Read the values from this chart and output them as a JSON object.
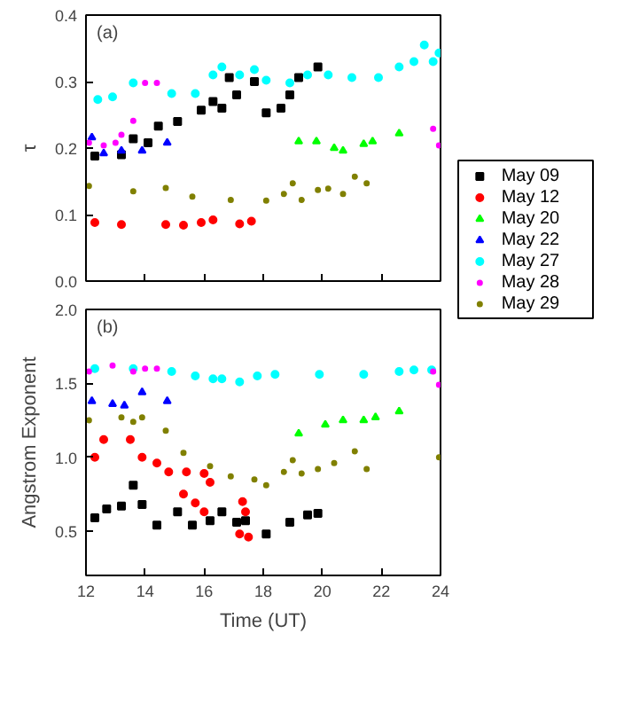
{
  "chart_data": [
    {
      "type": "scatter",
      "ylabel": "τ",
      "annotations": [
        "(a)"
      ],
      "xlim": [
        12,
        24
      ],
      "xticks": [
        12,
        14,
        16,
        18,
        20,
        22,
        24
      ],
      "ylim": [
        0,
        0.4
      ],
      "yticks": [
        {
          "value": 0,
          "label": "0.0"
        },
        0.1,
        0.2,
        0.3,
        0.4
      ],
      "tick_labels": "y",
      "legend": "right",
      "grid": false,
      "series": [
        {
          "name": "May 09",
          "color": "#000000",
          "marker": "square",
          "x": [
            12.3,
            13.2,
            13.6,
            14.1,
            14.45,
            15.1,
            15.9,
            16.3,
            16.6,
            16.85,
            17.1,
            17.7,
            18.1,
            18.6,
            18.9,
            19.2,
            19.85
          ],
          "values": [
            0.188,
            0.19,
            0.214,
            0.208,
            0.233,
            0.24,
            0.257,
            0.27,
            0.26,
            0.306,
            0.28,
            0.3,
            0.253,
            0.26,
            0.28,
            0.306,
            0.322
          ]
        },
        {
          "name": "May 12",
          "color": "#ff0000",
          "marker": "circle",
          "x": [
            12.3,
            13.2,
            14.7,
            15.3,
            15.9,
            16.3,
            17.2,
            17.6
          ],
          "values": [
            0.088,
            0.085,
            0.085,
            0.084,
            0.088,
            0.092,
            0.086,
            0.09
          ]
        },
        {
          "name": "May 20",
          "color": "#00ff00",
          "marker": "triangle",
          "x": [
            19.2,
            19.8,
            20.4,
            20.7,
            21.4,
            21.7,
            22.6
          ],
          "values": [
            0.21,
            0.21,
            0.2,
            0.196,
            0.206,
            0.21,
            0.222
          ]
        },
        {
          "name": "May 22",
          "color": "#0000ff",
          "marker": "triangle",
          "x": [
            12.2,
            12.6,
            13.2,
            13.9,
            14.75
          ],
          "values": [
            0.216,
            0.192,
            0.196,
            0.196,
            0.208
          ]
        },
        {
          "name": "May 27",
          "color": "#00ffff",
          "marker": "circle",
          "x": [
            12.4,
            12.9,
            13.6,
            14.9,
            15.7,
            16.3,
            16.6,
            17.2,
            17.7,
            18.1,
            18.9,
            19.5,
            20.2,
            21.0,
            21.9,
            22.6,
            23.1,
            23.45,
            23.75,
            23.95
          ],
          "values": [
            0.273,
            0.277,
            0.298,
            0.282,
            0.282,
            0.31,
            0.322,
            0.31,
            0.318,
            0.302,
            0.298,
            0.31,
            0.31,
            0.306,
            0.306,
            0.322,
            0.33,
            0.355,
            0.33,
            0.343
          ]
        },
        {
          "name": "May 28",
          "color": "#ff00ff",
          "marker": "dot",
          "x": [
            12.1,
            12.6,
            13.0,
            13.2,
            13.6,
            14.0,
            14.4,
            23.75,
            23.95
          ],
          "values": [
            0.208,
            0.204,
            0.208,
            0.22,
            0.241,
            0.298,
            0.298,
            0.229,
            0.204
          ]
        },
        {
          "name": "May 29",
          "color": "#808000",
          "marker": "dot",
          "x": [
            12.1,
            13.6,
            14.7,
            15.6,
            16.9,
            18.1,
            18.7,
            19.0,
            19.3,
            19.85,
            20.2,
            20.7,
            21.1,
            21.5
          ],
          "values": [
            0.143,
            0.135,
            0.14,
            0.127,
            0.122,
            0.121,
            0.131,
            0.147,
            0.122,
            0.137,
            0.139,
            0.131,
            0.157,
            0.147
          ]
        }
      ]
    },
    {
      "type": "scatter",
      "xlabel": "Time (UT)",
      "ylabel": "Angstrom Exponent",
      "annotations": [
        "(b)"
      ],
      "xlim": [
        12,
        24
      ],
      "xticks": [
        12,
        14,
        16,
        18,
        20,
        22,
        24
      ],
      "ylim": [
        0.2,
        2.0
      ],
      "yticks": [
        0.5,
        {
          "value": 1,
          "label": "1.0"
        },
        1.5,
        {
          "value": 2,
          "label": "2.0"
        }
      ],
      "grid": false,
      "series": [
        {
          "color": "#000000",
          "marker": "square",
          "x": [
            12.3,
            12.7,
            13.2,
            13.6,
            13.9,
            14.4,
            15.1,
            15.6,
            16.2,
            16.6,
            17.1,
            17.4,
            18.1,
            18.9,
            19.5,
            19.85
          ],
          "values": [
            0.59,
            0.65,
            0.67,
            0.81,
            0.68,
            0.54,
            0.63,
            0.54,
            0.57,
            0.63,
            0.56,
            0.57,
            0.48,
            0.56,
            0.61,
            0.62
          ]
        },
        {
          "color": "#ff0000",
          "marker": "circle",
          "x": [
            12.3,
            12.6,
            13.5,
            13.9,
            14.4,
            14.8,
            15.4,
            16.0,
            16.2,
            15.3,
            15.7,
            16.0,
            17.3,
            17.4,
            17.2,
            17.5
          ],
          "values": [
            1.0,
            1.12,
            1.12,
            1.0,
            0.96,
            0.9,
            0.9,
            0.89,
            0.83,
            0.75,
            0.69,
            0.63,
            0.7,
            0.63,
            0.48,
            0.46
          ]
        },
        {
          "color": "#00ff00",
          "marker": "triangle",
          "x": [
            19.2,
            20.1,
            20.7,
            21.4,
            21.8,
            22.6
          ],
          "values": [
            1.16,
            1.22,
            1.25,
            1.25,
            1.27,
            1.31
          ]
        },
        {
          "color": "#0000ff",
          "marker": "triangle",
          "x": [
            12.2,
            12.9,
            13.3,
            13.9,
            14.75
          ],
          "values": [
            1.38,
            1.36,
            1.35,
            1.44,
            1.38
          ]
        },
        {
          "color": "#00ffff",
          "marker": "circle",
          "x": [
            12.3,
            13.6,
            14.9,
            15.7,
            16.3,
            16.6,
            17.2,
            17.8,
            18.4,
            19.9,
            21.4,
            22.6,
            23.1,
            23.7
          ],
          "values": [
            1.6,
            1.6,
            1.58,
            1.55,
            1.53,
            1.53,
            1.51,
            1.55,
            1.56,
            1.56,
            1.56,
            1.58,
            1.59,
            1.59
          ]
        },
        {
          "color": "#ff00ff",
          "marker": "dot",
          "x": [
            12.1,
            12.9,
            13.6,
            14.0,
            14.4,
            23.75,
            23.95
          ],
          "values": [
            1.58,
            1.62,
            1.58,
            1.6,
            1.6,
            1.58,
            1.49
          ]
        },
        {
          "color": "#808000",
          "marker": "dot",
          "x": [
            12.1,
            13.2,
            13.6,
            13.9,
            14.7,
            15.3,
            16.2,
            16.9,
            17.7,
            18.1,
            18.7,
            19.0,
            19.3,
            19.85,
            20.4,
            21.1,
            21.5,
            23.95
          ],
          "values": [
            1.25,
            1.27,
            1.24,
            1.27,
            1.18,
            1.03,
            0.94,
            0.87,
            0.85,
            0.81,
            0.9,
            0.98,
            0.89,
            0.92,
            0.96,
            1.04,
            0.92,
            1.0
          ]
        }
      ]
    }
  ]
}
